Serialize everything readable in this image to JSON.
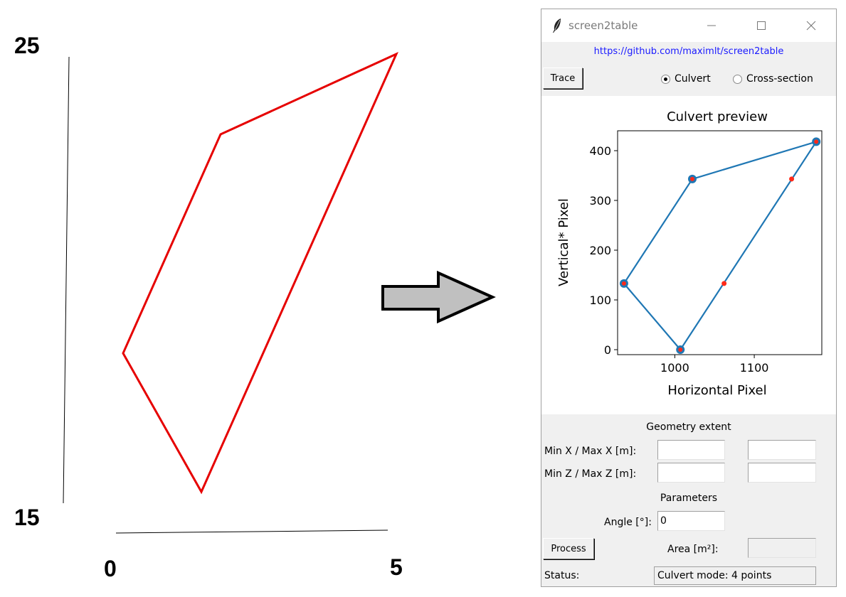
{
  "canvas": {
    "y_top_label": "25",
    "y_bottom_label": "15",
    "x_left_label": "0",
    "x_right_label": "5",
    "polygon_color": "#e60000"
  },
  "window": {
    "title": "screen2table",
    "link": "https://github.com/maximlt/screen2table",
    "trace_label": "Trace",
    "mode_options": [
      "Culvert",
      "Cross-section"
    ],
    "selected_mode": "Culvert",
    "plot": {
      "title": "Culvert preview",
      "xlabel": "Horizontal Pixel",
      "ylabel": "Vertical* Pixel"
    },
    "geometry_heading": "Geometry extent",
    "minmax_x_label": "Min X / Max X [m]:",
    "minmax_z_label": "Min Z / Max Z [m]:",
    "min_x_value": "",
    "max_x_value": "",
    "min_z_value": "",
    "max_z_value": "",
    "parameters_heading": "Parameters",
    "angle_label": "Angle [°]:",
    "angle_value": "0",
    "process_label": "Process",
    "area_label": "Area [m²]:",
    "area_value": "",
    "status_label": "Status:",
    "status_value": "Culvert mode: 4 points"
  },
  "chart_data": {
    "type": "line",
    "title": "Culvert preview",
    "xlabel": "Horizontal Pixel",
    "ylabel": "Vertical* Pixel",
    "xlim": [
      928,
      1185
    ],
    "ylim": [
      -10,
      440
    ],
    "xticks": [
      1000,
      1100
    ],
    "yticks": [
      0,
      100,
      200,
      300,
      400
    ],
    "line_color": "#1f77b4",
    "marker_color": "#ff2a1a",
    "series": [
      {
        "points": [
          [
            1007,
            0
          ],
          [
            936,
            133
          ],
          [
            1022,
            343
          ],
          [
            1178,
            418
          ],
          [
            1007,
            0
          ]
        ]
      }
    ],
    "interpolated_points": [
      [
        1062,
        133
      ],
      [
        1147,
        343
      ]
    ]
  }
}
